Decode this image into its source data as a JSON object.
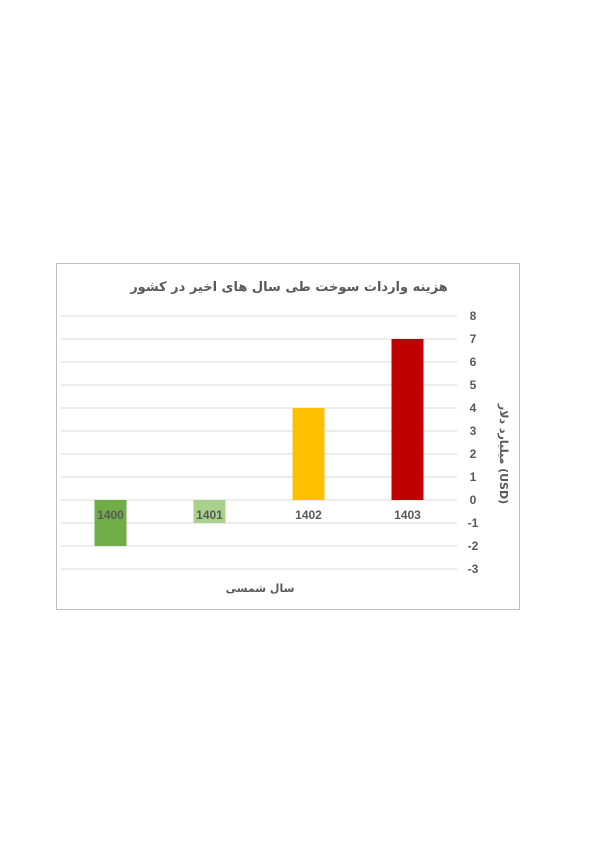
{
  "chart_data": {
    "type": "bar",
    "title": "هزینه واردات سوخت طی سال های اخیر در کشور",
    "xlabel": "سال شمسی",
    "ylabel": "میلیارد دلار (USD)",
    "categories": [
      "1400",
      "1401",
      "1402",
      "1403"
    ],
    "values": [
      -2,
      -1,
      4,
      7
    ],
    "colors": [
      "#70ad47",
      "#a9d18e",
      "#ffc000",
      "#c00000"
    ],
    "ylim": [
      -3,
      8
    ],
    "yticks": [
      "-3",
      "-2",
      "-1",
      "0",
      "1",
      "2",
      "3",
      "4",
      "5",
      "6",
      "7",
      "8"
    ],
    "y_axis_position": "right",
    "grid": true,
    "legend": "none"
  }
}
